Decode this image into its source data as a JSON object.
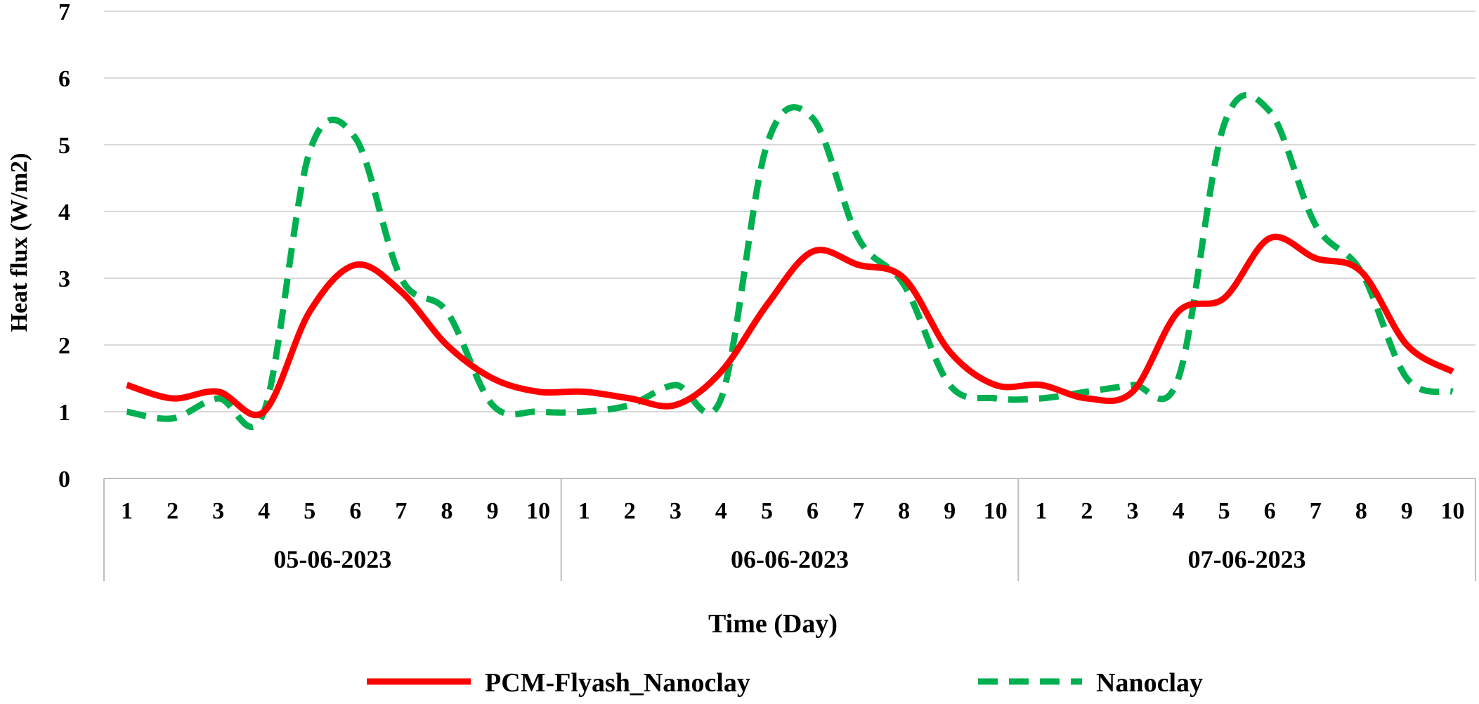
{
  "chart_data": {
    "type": "line",
    "title": "",
    "xlabel": "Time (Day)",
    "ylabel": "Heat flux (W/m2)",
    "ylim": [
      0,
      7
    ],
    "yticks": [
      "0",
      "1",
      "2",
      "3",
      "4",
      "5",
      "6",
      "7"
    ],
    "grid": true,
    "legend_position": "bottom",
    "groups": [
      {
        "label": "05-06-2023",
        "ticks": [
          "1",
          "2",
          "3",
          "4",
          "5",
          "6",
          "7",
          "8",
          "9",
          "10"
        ]
      },
      {
        "label": "06-06-2023",
        "ticks": [
          "1",
          "2",
          "3",
          "4",
          "5",
          "6",
          "7",
          "8",
          "9",
          "10"
        ]
      },
      {
        "label": "07-06-2023",
        "ticks": [
          "1",
          "2",
          "3",
          "4",
          "5",
          "6",
          "7",
          "8",
          "9",
          "10"
        ]
      }
    ],
    "series": [
      {
        "name": "PCM-Flyash_Nanoclay",
        "color": "#ff0000",
        "style": "solid",
        "values": [
          1.4,
          1.2,
          1.3,
          1.0,
          2.5,
          3.2,
          2.8,
          2.0,
          1.5,
          1.3,
          1.3,
          1.2,
          1.1,
          1.6,
          2.6,
          3.4,
          3.2,
          3.0,
          1.9,
          1.4,
          1.4,
          1.2,
          1.3,
          2.5,
          2.7,
          3.6,
          3.3,
          3.1,
          2.0,
          1.6
        ]
      },
      {
        "name": "Nanoclay",
        "color": "#00b050",
        "style": "dashed",
        "values": [
          1.0,
          0.9,
          1.2,
          1.0,
          4.9,
          5.1,
          3.0,
          2.5,
          1.1,
          1.0,
          1.0,
          1.1,
          1.4,
          1.2,
          5.0,
          5.4,
          3.6,
          2.9,
          1.4,
          1.2,
          1.2,
          1.3,
          1.4,
          1.5,
          5.3,
          5.5,
          3.8,
          3.1,
          1.5,
          1.3
        ]
      }
    ]
  }
}
